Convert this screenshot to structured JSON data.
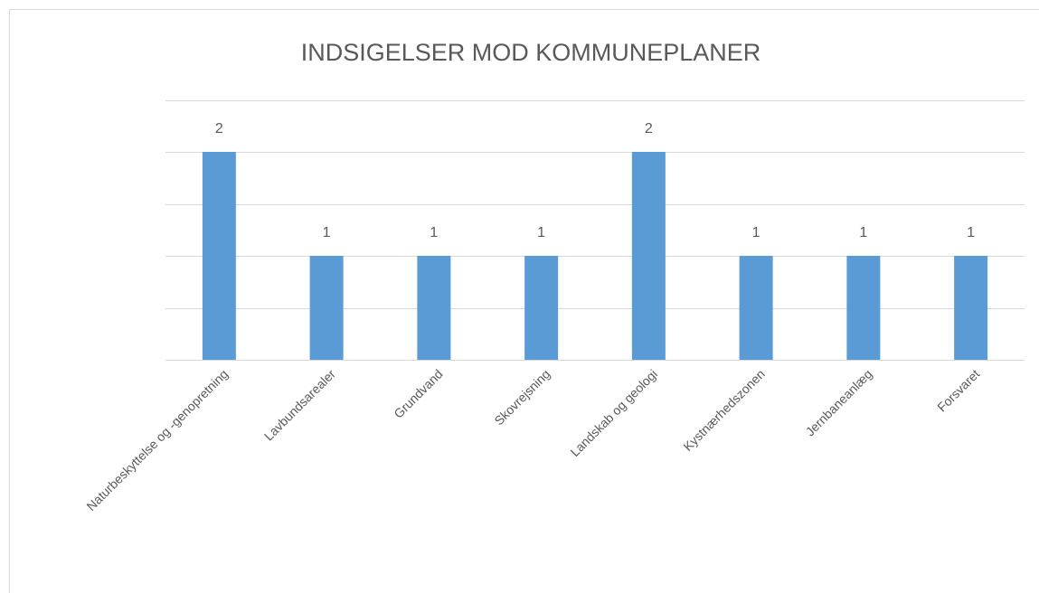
{
  "chart_data": {
    "type": "bar",
    "title": "INDSIGELSER MOD KOMMUNEPLANER",
    "categories": [
      "Naturbeskyttelse og -genopretning",
      "Lavbundsarealer",
      "Grundvand",
      "Skovrejsning",
      "Landskab og geologi",
      "Kystnærhedszonen",
      "Jernbaneanlæg",
      "Forsvaret"
    ],
    "values": [
      2,
      1,
      1,
      1,
      2,
      1,
      1,
      1
    ],
    "color": "#5b9bd5",
    "ylim": [
      0,
      2.5
    ],
    "yticks": [
      0,
      0.5,
      1,
      1.5,
      2,
      2.5
    ],
    "grid": true,
    "tick_labels": false
  }
}
